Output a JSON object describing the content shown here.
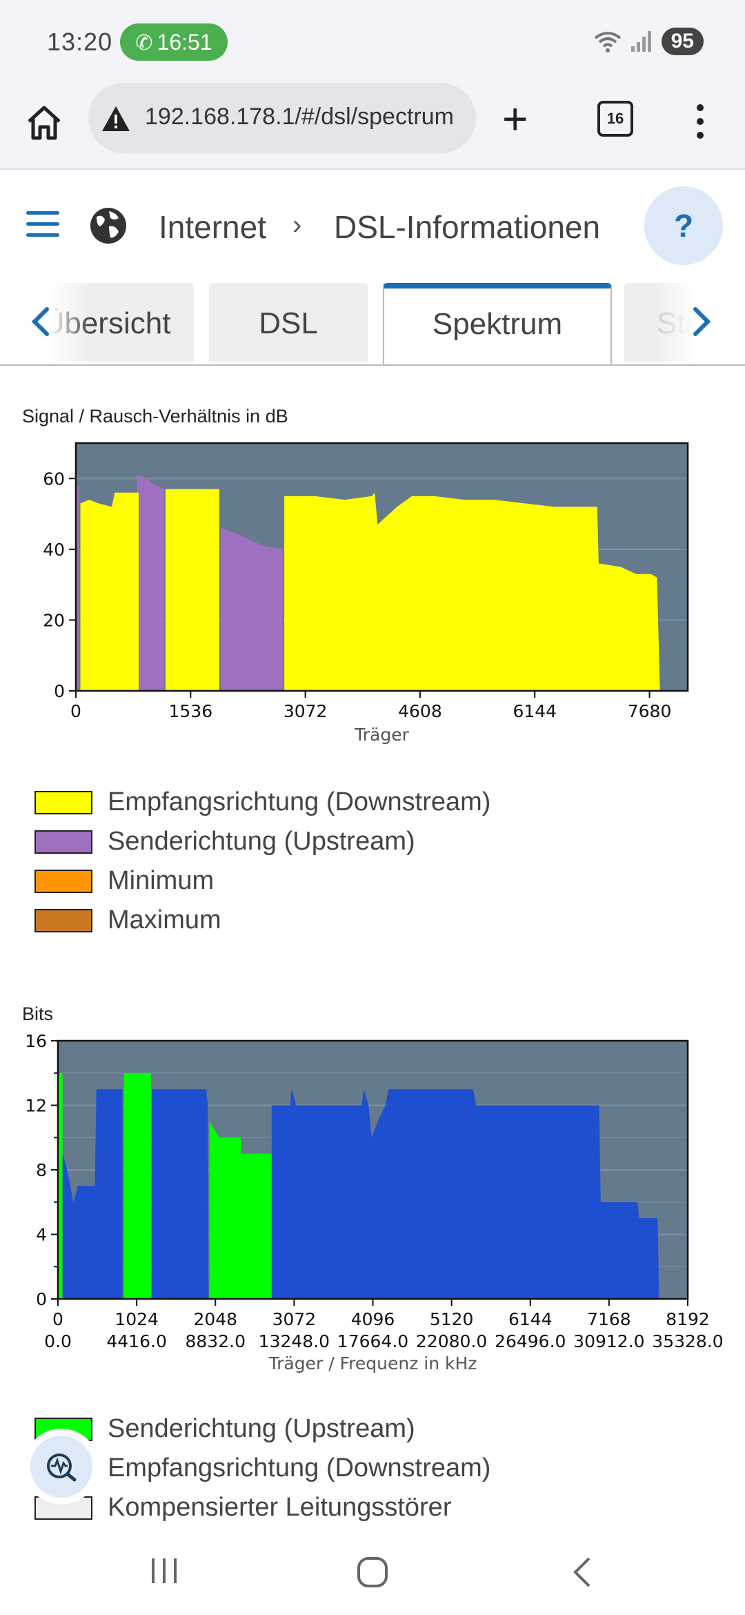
{
  "status_bar": {
    "time": "13:20",
    "call_time": "16:51",
    "battery": "95",
    "icons": [
      "wifi-icon",
      "signal-icon",
      "battery-icon",
      "phone-icon"
    ]
  },
  "browser": {
    "url": "192.168.178.1/#/dsl/spectrum",
    "tab_count": "16"
  },
  "header": {
    "breadcrumb_1": "Internet",
    "breadcrumb_sep": "›",
    "breadcrumb_2": "DSL-Informationen",
    "help_label": "?"
  },
  "tabs": [
    {
      "label": "Übersicht",
      "visible": "Übersicht"
    },
    {
      "label": "DSL"
    },
    {
      "label": "Spektrum",
      "active": true
    },
    {
      "label": "Statistik",
      "visible": "Sta"
    }
  ],
  "chart_snr": {
    "title": "Signal / Rausch-Verhältnis in dB",
    "xlabel": "Träger"
  },
  "chart_bits": {
    "title": "Bits",
    "xlabel": "Träger / Frequenz in kHz"
  },
  "legend_snr": [
    {
      "label": "Empfangsrichtung (Downstream)",
      "color": "#ffff00"
    },
    {
      "label": "Senderichtung (Upstream)",
      "color": "#a070c0"
    },
    {
      "label": "Minimum",
      "color": "#ff9500"
    },
    {
      "label": "Maximum",
      "color": "#c87820"
    }
  ],
  "legend_bits": [
    {
      "label": "Senderichtung (Upstream)",
      "color": "#00ff00"
    },
    {
      "label": "Empfangsrichtung (Downstream)",
      "color": "#1e4fd0"
    },
    {
      "label": "Kompensierter Leitungsstörer",
      "color": "#f0f0f0"
    }
  ],
  "chart_data": [
    {
      "type": "area",
      "title": "Signal / Rausch-Verhältnis in dB",
      "xlabel": "Träger",
      "ylabel": "",
      "xlim": [
        0,
        8192
      ],
      "ylim": [
        0,
        70
      ],
      "xticks": [
        0,
        1536,
        3072,
        4608,
        6144,
        7680
      ],
      "yticks": [
        0,
        20,
        40,
        60
      ],
      "series": [
        {
          "name": "Senderichtung (Upstream)",
          "color": "#a070c0",
          "points": [
            [
              0,
              0
            ],
            [
              0,
              58
            ],
            [
              40,
              58
            ],
            [
              40,
              0
            ],
            [
              820,
              0
            ],
            [
              820,
              61
            ],
            [
              950,
              60
            ],
            [
              1080,
              58
            ],
            [
              1180,
              57
            ],
            [
              1180,
              0
            ],
            [
              1940,
              0
            ],
            [
              1940,
              46
            ],
            [
              2200,
              44
            ],
            [
              2500,
              41
            ],
            [
              2770,
              40
            ],
            [
              2770,
              0
            ]
          ]
        },
        {
          "name": "Empfangsrichtung (Downstream)",
          "color": "#ffff00",
          "points": [
            [
              60,
              0
            ],
            [
              60,
              53
            ],
            [
              180,
              54
            ],
            [
              300,
              53
            ],
            [
              480,
              52
            ],
            [
              520,
              56
            ],
            [
              700,
              56
            ],
            [
              840,
              56
            ],
            [
              840,
              0
            ],
            [
              1200,
              0
            ],
            [
              1200,
              57
            ],
            [
              1920,
              57
            ],
            [
              1920,
              0
            ],
            [
              2790,
              0
            ],
            [
              2790,
              55
            ],
            [
              3200,
              55
            ],
            [
              3600,
              54
            ],
            [
              3960,
              55
            ],
            [
              4000,
              56
            ],
            [
              4040,
              47
            ],
            [
              4300,
              52
            ],
            [
              4500,
              55
            ],
            [
              4800,
              55
            ],
            [
              5200,
              54
            ],
            [
              5600,
              54
            ],
            [
              6000,
              53
            ],
            [
              6400,
              52
            ],
            [
              6980,
              52
            ],
            [
              7000,
              36
            ],
            [
              7300,
              35
            ],
            [
              7500,
              33
            ],
            [
              7700,
              33
            ],
            [
              7780,
              32
            ],
            [
              7820,
              0
            ]
          ]
        }
      ],
      "bands": {
        "downstream_ranges": [
          [
            60,
            840
          ],
          [
            1200,
            1920
          ],
          [
            2790,
            7820
          ]
        ],
        "upstream_ranges": [
          [
            0,
            40
          ],
          [
            820,
            1180
          ],
          [
            1940,
            2770
          ]
        ]
      }
    },
    {
      "type": "area",
      "title": "Bits",
      "xlabel": "Träger / Frequenz in kHz",
      "xlim": [
        0,
        8192
      ],
      "ylim": [
        0,
        16
      ],
      "xticks": [
        0,
        1024,
        2048,
        3072,
        4096,
        5120,
        6144,
        7168,
        8192
      ],
      "xticks_khz": [
        "0.0",
        "4416.0",
        "8832.0",
        "13248.0",
        "17664.0",
        "22080.0",
        "26496.0",
        "30912.0",
        "35328.0"
      ],
      "yticks": [
        0,
        4,
        8,
        12,
        16
      ],
      "series": [
        {
          "name": "Senderichtung (Upstream)",
          "color": "#00ff00",
          "points": [
            [
              0,
              0
            ],
            [
              0,
              14
            ],
            [
              60,
              14
            ],
            [
              60,
              0
            ],
            [
              860,
              0
            ],
            [
              860,
              14
            ],
            [
              1210,
              14
            ],
            [
              1210,
              0
            ],
            [
              1970,
              0
            ],
            [
              1970,
              11
            ],
            [
              2100,
              10
            ],
            [
              2380,
              10
            ],
            [
              2380,
              9
            ],
            [
              2780,
              9
            ],
            [
              2780,
              0
            ]
          ]
        },
        {
          "name": "Empfangsrichtung (Downstream)",
          "color": "#1e4fd0",
          "points": [
            [
              60,
              0
            ],
            [
              60,
              9
            ],
            [
              120,
              8
            ],
            [
              200,
              6
            ],
            [
              260,
              7
            ],
            [
              480,
              7
            ],
            [
              500,
              13
            ],
            [
              840,
              13
            ],
            [
              840,
              0
            ],
            [
              1220,
              0
            ],
            [
              1220,
              13
            ],
            [
              1930,
              13
            ],
            [
              1950,
              12
            ],
            [
              1960,
              0
            ],
            [
              2780,
              0
            ],
            [
              2780,
              12
            ],
            [
              3020,
              12
            ],
            [
              3040,
              13
            ],
            [
              3100,
              12
            ],
            [
              3950,
              12
            ],
            [
              3980,
              13
            ],
            [
              4040,
              12
            ],
            [
              4080,
              10
            ],
            [
              4160,
              11
            ],
            [
              4260,
              12
            ],
            [
              4300,
              13
            ],
            [
              5400,
              13
            ],
            [
              5440,
              12
            ],
            [
              7040,
              12
            ],
            [
              7060,
              6
            ],
            [
              7540,
              6
            ],
            [
              7560,
              5
            ],
            [
              7800,
              5
            ],
            [
              7820,
              0
            ]
          ]
        }
      ]
    }
  ]
}
